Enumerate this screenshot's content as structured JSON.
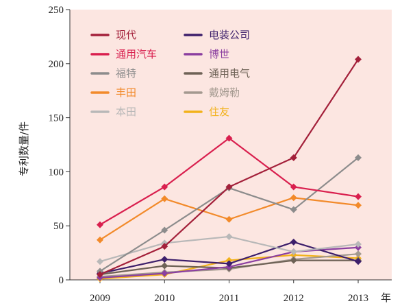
{
  "chart_data": {
    "type": "line",
    "x": [
      "2009",
      "2010",
      "2011",
      "2012",
      "2013"
    ],
    "x_unit_label": "年",
    "ylabel": "专利数量/件",
    "ylim": [
      0,
      250
    ],
    "yticks": [
      0,
      50,
      100,
      150,
      200,
      250
    ],
    "grid": false,
    "legend_position": "top-left",
    "colors": {
      "background": "#fce6e1"
    },
    "series": [
      {
        "name": "现代",
        "color": "#a3203a",
        "values": [
          5,
          31,
          86,
          113,
          204
        ]
      },
      {
        "name": "通用汽车",
        "color": "#d91f4e",
        "values": [
          51,
          86,
          131,
          86,
          77
        ]
      },
      {
        "name": "福特",
        "color": "#8c8c8c",
        "values": [
          8,
          46,
          85,
          65,
          113
        ]
      },
      {
        "name": "丰田",
        "color": "#f28a2a",
        "values": [
          37,
          75,
          56,
          76,
          69
        ]
      },
      {
        "name": "本田",
        "color": "#b8b8b8",
        "values": [
          17,
          34,
          40,
          26,
          33
        ]
      },
      {
        "name": "电装公司",
        "color": "#3d1f6b",
        "values": [
          6,
          19,
          15,
          35,
          17
        ]
      },
      {
        "name": "博世",
        "color": "#8b3fa0",
        "values": [
          2,
          6,
          12,
          26,
          30
        ]
      },
      {
        "name": "通用电气",
        "color": "#6e6256",
        "values": [
          5,
          13,
          11,
          18,
          18
        ]
      },
      {
        "name": "戴姆勒",
        "color": "#a3998f",
        "values": [
          3,
          7,
          10,
          19,
          24
        ]
      },
      {
        "name": "住友",
        "color": "#f2b21b",
        "values": [
          1,
          5,
          18,
          23,
          20
        ]
      }
    ]
  }
}
